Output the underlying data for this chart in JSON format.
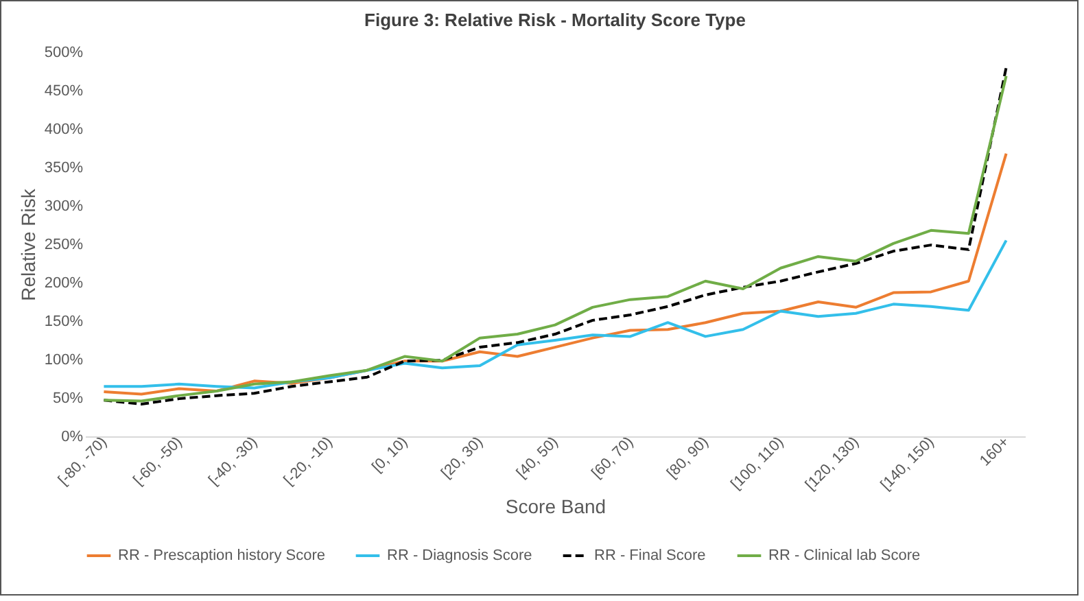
{
  "chart_data": {
    "type": "line",
    "title": "Figure 3: Relative Risk - Mortality Score Type",
    "xlabel": "Score Band",
    "ylabel": "Relative Risk",
    "categories": [
      "[-80, -70)",
      null,
      "[-60, -50)",
      null,
      "[-40, -30)",
      null,
      "[-20, -10)",
      null,
      "[0, 10)",
      null,
      "[20, 30)",
      null,
      "[40, 50)",
      null,
      "[60, 70)",
      null,
      "[80, 90)",
      null,
      "[100, 110)",
      null,
      "[120, 130)",
      null,
      "[140, 150)",
      null,
      "160+"
    ],
    "series": [
      {
        "name": "RR - Prescaption history Score",
        "color": "#ed7d31",
        "values": [
          58,
          55,
          62,
          59,
          72,
          69,
          76,
          86,
          98,
          98,
          110,
          104,
          116,
          128,
          138,
          139,
          148,
          160,
          163,
          175,
          168,
          187,
          188,
          202,
          368
        ]
      },
      {
        "name": "RR - Diagnosis Score",
        "color": "#33bfea",
        "values": [
          65,
          65,
          68,
          65,
          63,
          71,
          76,
          86,
          95,
          89,
          92,
          119,
          125,
          132,
          130,
          148,
          130,
          139,
          163,
          156,
          160,
          172,
          169,
          164,
          255
        ]
      },
      {
        "name": "RR - Final Score",
        "color": "#000000",
        "line_style": "dashed",
        "values": [
          47,
          42,
          49,
          53,
          56,
          65,
          71,
          77,
          98,
          99,
          116,
          122,
          133,
          151,
          158,
          169,
          184,
          194,
          202,
          214,
          225,
          241,
          249,
          243,
          480
        ]
      },
      {
        "name": "RR - Clinical lab Score",
        "color": "#70ad47",
        "values": [
          47,
          46,
          53,
          59,
          68,
          71,
          79,
          86,
          104,
          98,
          128,
          133,
          145,
          168,
          178,
          182,
          202,
          192,
          219,
          234,
          228,
          251,
          268,
          264,
          469
        ]
      }
    ],
    "ylim": [
      0,
      500
    ],
    "yticks": [
      {
        "value": 0,
        "label": "0%"
      },
      {
        "value": 50,
        "label": "50%"
      },
      {
        "value": 100,
        "label": "100%"
      },
      {
        "value": 150,
        "label": "150%"
      },
      {
        "value": 200,
        "label": "200%"
      },
      {
        "value": 250,
        "label": "250%"
      },
      {
        "value": 300,
        "label": "300%"
      },
      {
        "value": 350,
        "label": "350%"
      },
      {
        "value": 400,
        "label": "400%"
      },
      {
        "value": 450,
        "label": "450%"
      },
      {
        "value": 500,
        "label": "500%"
      }
    ],
    "grid": false,
    "legend": "bottom",
    "line_style": "solid",
    "marker": "none"
  }
}
